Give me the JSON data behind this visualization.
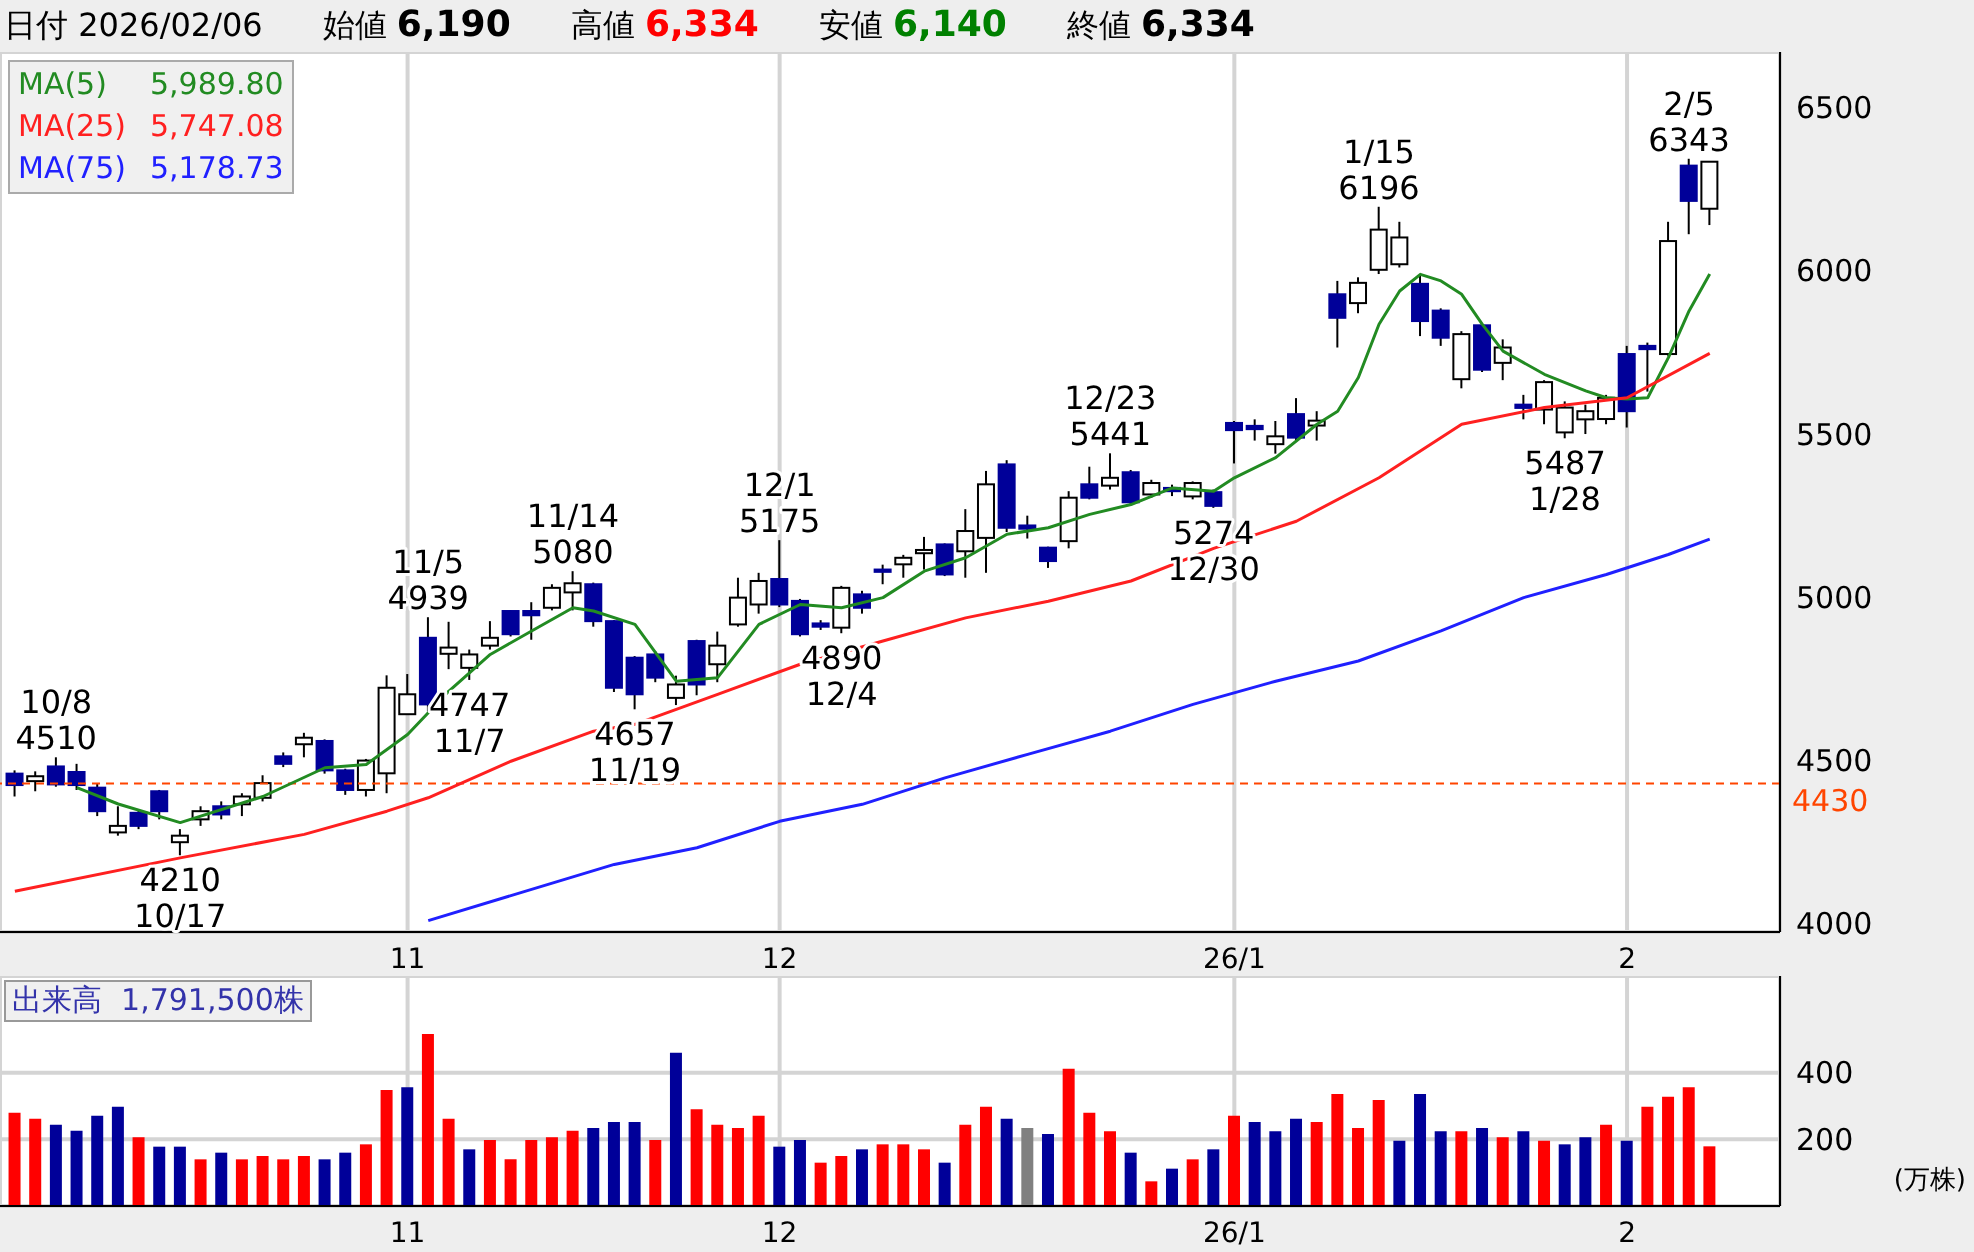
{
  "chart_data": [
    {
      "type": "candlestick",
      "categories": [
        null,
        null,
        null,
        null,
        null,
        null,
        null,
        null,
        null,
        null,
        null,
        null,
        null,
        null,
        null,
        null,
        null,
        null,
        null,
        "11",
        null,
        null,
        null,
        null,
        null,
        null,
        null,
        null,
        null,
        null,
        null,
        null,
        null,
        null,
        null,
        null,
        null,
        "12",
        null,
        null,
        null,
        null,
        null,
        null,
        null,
        null,
        null,
        null,
        null,
        null,
        null,
        null,
        null,
        null,
        null,
        null,
        null,
        null,
        null,
        "26/1",
        null,
        null,
        null,
        null,
        null,
        null,
        null,
        null,
        null,
        null,
        null,
        null,
        null,
        null,
        null,
        null,
        null,
        null,
        "2",
        null,
        null,
        null,
        null
      ],
      "ohlc": [
        [
          4460,
          4470,
          4390,
          4425
        ],
        [
          4437,
          4467,
          4406,
          4452
        ],
        [
          4482,
          4510,
          4420,
          4427
        ],
        [
          4465,
          4490,
          4410,
          4425
        ],
        [
          4417,
          4430,
          4330,
          4345
        ],
        [
          4280,
          4360,
          4270,
          4300
        ],
        [
          4340,
          4350,
          4290,
          4300
        ],
        [
          4406,
          4410,
          4320,
          4345
        ],
        [
          4250,
          4290,
          4210,
          4270
        ],
        [
          4320,
          4360,
          4300,
          4345
        ],
        [
          4360,
          4375,
          4320,
          4335
        ],
        [
          4366,
          4400,
          4330,
          4390
        ],
        [
          4386,
          4455,
          4375,
          4431
        ],
        [
          4513,
          4525,
          4480,
          4490
        ],
        [
          4550,
          4585,
          4510,
          4570
        ],
        [
          4560,
          4565,
          4460,
          4470
        ],
        [
          4470,
          4475,
          4395,
          4410
        ],
        [
          4410,
          4505,
          4390,
          4500
        ],
        [
          4461,
          4761,
          4400,
          4723
        ],
        [
          4642,
          4765,
          4640,
          4703
        ],
        [
          4876,
          4939,
          4650,
          4672
        ],
        [
          4827,
          4925,
          4780,
          4846
        ],
        [
          4784,
          4840,
          4747,
          4825
        ],
        [
          4852,
          4927,
          4840,
          4876
        ],
        [
          4958,
          4960,
          4880,
          4887
        ],
        [
          4958,
          4985,
          4870,
          4945
        ],
        [
          4968,
          5040,
          4960,
          5029
        ],
        [
          5015,
          5080,
          4960,
          5043
        ],
        [
          5040,
          5045,
          4910,
          4927
        ],
        [
          4927,
          4930,
          4710,
          4723
        ],
        [
          4815,
          4820,
          4657,
          4703
        ],
        [
          4825,
          4835,
          4740,
          4754
        ],
        [
          4692,
          4760,
          4670,
          4733
        ],
        [
          4866,
          4870,
          4700,
          4733
        ],
        [
          4795,
          4895,
          4740,
          4852
        ],
        [
          4917,
          5060,
          4910,
          4999
        ],
        [
          4978,
          5075,
          4950,
          5050
        ],
        [
          5056,
          5175,
          4970,
          4978
        ],
        [
          4989,
          4995,
          4880,
          4887
        ],
        [
          4920,
          4930,
          4900,
          4910
        ],
        [
          4907,
          5035,
          4890,
          5029
        ],
        [
          5009,
          5020,
          4950,
          4968
        ],
        [
          5085,
          5100,
          5040,
          5078
        ],
        [
          5101,
          5130,
          5060,
          5121
        ],
        [
          5135,
          5185,
          5085,
          5145
        ],
        [
          5162,
          5165,
          5065,
          5070
        ],
        [
          5141,
          5270,
          5060,
          5203
        ],
        [
          5182,
          5387,
          5075,
          5346
        ],
        [
          5407,
          5420,
          5200,
          5213
        ],
        [
          5220,
          5250,
          5180,
          5210
        ],
        [
          5152,
          5155,
          5090,
          5111
        ],
        [
          5172,
          5325,
          5150,
          5305
        ],
        [
          5346,
          5400,
          5300,
          5305
        ],
        [
          5342,
          5441,
          5330,
          5366
        ],
        [
          5383,
          5390,
          5285,
          5291
        ],
        [
          5315,
          5360,
          5305,
          5350
        ],
        [
          5335,
          5345,
          5310,
          5325
        ],
        [
          5309,
          5355,
          5300,
          5350
        ],
        [
          5322,
          5330,
          5274,
          5280
        ],
        [
          5534,
          5540,
          5410,
          5512
        ],
        [
          5525,
          5545,
          5480,
          5515
        ],
        [
          5469,
          5540,
          5440,
          5493
        ],
        [
          5561,
          5610,
          5480,
          5489
        ],
        [
          5526,
          5570,
          5480,
          5541
        ],
        [
          5928,
          5969,
          5765,
          5856
        ],
        [
          5901,
          5980,
          5870,
          5963
        ],
        [
          6003,
          6196,
          5990,
          6126
        ],
        [
          6020,
          6150,
          6010,
          6102
        ],
        [
          5960,
          5990,
          5800,
          5846
        ],
        [
          5878,
          5885,
          5770,
          5795
        ],
        [
          5668,
          5815,
          5640,
          5806
        ],
        [
          5833,
          5840,
          5690,
          5697
        ],
        [
          5718,
          5790,
          5665,
          5765
        ],
        [
          5590,
          5620,
          5545,
          5580
        ],
        [
          5575,
          5665,
          5530,
          5659
        ],
        [
          5505,
          5600,
          5487,
          5581
        ],
        [
          5545,
          5590,
          5500,
          5570
        ],
        [
          5546,
          5620,
          5530,
          5611
        ],
        [
          5745,
          5770,
          5520,
          5570
        ],
        [
          5770,
          5780,
          5630,
          5760
        ],
        [
          5745,
          6150,
          5740,
          6091
        ],
        [
          6322,
          6343,
          6112,
          6214
        ],
        [
          6190,
          6334,
          6140,
          6334
        ]
      ],
      "colors": [
        "#000099",
        "#ffffff",
        "#000099",
        "#000099",
        "#000099",
        "#ffffff",
        "#000099",
        "#000099",
        "#ffffff",
        "#ffffff",
        "#000099",
        "#ffffff",
        "#ffffff",
        "#000099",
        "#ffffff",
        "#000099",
        "#000099",
        "#ffffff",
        "#ffffff",
        "#ffffff",
        "#000099",
        "#ffffff",
        "#ffffff",
        "#ffffff",
        "#000099",
        "#000099",
        "#ffffff",
        "#ffffff",
        "#000099",
        "#000099",
        "#000099",
        "#000099",
        "#ffffff",
        "#000099",
        "#ffffff",
        "#ffffff",
        "#ffffff",
        "#000099",
        "#000099",
        "#000099",
        "#ffffff",
        "#000099",
        "#000099",
        "#ffffff",
        "#ffffff",
        "#000099",
        "#ffffff",
        "#ffffff",
        "#000099",
        "#000099",
        "#000099",
        "#ffffff",
        "#000099",
        "#ffffff",
        "#000099",
        "#ffffff",
        "#000099",
        "#ffffff",
        "#000099",
        "#000099",
        "#000099",
        "#ffffff",
        "#000099",
        "#ffffff",
        "#000099",
        "#ffffff",
        "#ffffff",
        "#ffffff",
        "#000099",
        "#000099",
        "#ffffff",
        "#000099",
        "#ffffff",
        "#000099",
        "#ffffff",
        "#ffffff",
        "#ffffff",
        "#ffffff",
        "#000099",
        "#000099",
        "#ffffff",
        "#000099",
        "#ffffff"
      ],
      "series": [
        {
          "type": "line",
          "name": "MA(5)",
          "color": "#228b22",
          "values": [
            null,
            null,
            null,
            4417,
            null,
            4367,
            null,
            null,
            4310,
            null,
            null,
            null,
            4390,
            null,
            null,
            4478,
            null,
            4488,
            null,
            4580,
            null,
            4713,
            null,
            4825,
            null,
            4897,
            null,
            4968,
            4958,
            null,
            4917,
            null,
            4743,
            null,
            4754,
            null,
            4917,
            null,
            4978,
            null,
            4968,
            null,
            4999,
            null,
            5080,
            null,
            5121,
            null,
            5193,
            null,
            5213,
            null,
            5254,
            null,
            5284,
            null,
            5335,
            null,
            5325,
            5366,
            null,
            5428,
            null,
            5530,
            5570,
            5673,
            5836,
            5938,
            5989,
            5969,
            5928,
            5836,
            5754,
            null,
            5683,
            null,
            5632,
            5611,
            5607,
            5611,
            5734,
            5877,
            5990
          ]
        },
        {
          "type": "line",
          "name": "MA(25)",
          "color": "#ff2020",
          "values": [
            4100,
            null,
            null,
            null,
            null,
            null,
            null,
            null,
            4202,
            null,
            null,
            null,
            null,
            null,
            4274,
            null,
            null,
            null,
            4345,
            null,
            4386,
            null,
            null,
            null,
            4498,
            null,
            null,
            null,
            4590,
            null,
            4611,
            null,
            null,
            null,
            4703,
            null,
            null,
            null,
            4795,
            null,
            null,
            null,
            4866,
            null,
            null,
            null,
            4937,
            null,
            null,
            null,
            4988,
            null,
            null,
            null,
            5050,
            null,
            null,
            null,
            5150,
            null,
            null,
            null,
            5233,
            null,
            null,
            null,
            5366,
            null,
            null,
            null,
            5530,
            null,
            null,
            null,
            5581,
            null,
            null,
            null,
            5611,
            null,
            null,
            null,
            5747
          ]
        },
        {
          "type": "line",
          "name": "MA(75)",
          "color": "#2020ff",
          "values": [
            null,
            null,
            null,
            null,
            null,
            null,
            null,
            null,
            null,
            null,
            null,
            null,
            null,
            null,
            null,
            null,
            null,
            null,
            null,
            null,
            4010,
            null,
            null,
            null,
            null,
            null,
            null,
            null,
            null,
            4182,
            null,
            null,
            null,
            4233,
            null,
            null,
            null,
            4314,
            null,
            null,
            null,
            4366,
            null,
            null,
            null,
            4447,
            null,
            null,
            null,
            4519,
            null,
            null,
            null,
            4590,
            null,
            null,
            null,
            4672,
            null,
            null,
            null,
            4743,
            null,
            null,
            null,
            4805,
            null,
            null,
            null,
            4897,
            null,
            null,
            null,
            4999,
            null,
            null,
            null,
            5070,
            null,
            null,
            5131,
            null,
            5178
          ]
        }
      ],
      "ylim": [
        3975,
        6670
      ],
      "yticks": [
        4000,
        4500,
        5000,
        5500,
        6000,
        6500
      ],
      "grid": true,
      "legend": "top left",
      "ref_lines": [
        {
          "axis": "y",
          "value": 4430,
          "label": "4430",
          "color": "#ff4500",
          "line_style": "dashed"
        }
      ],
      "annotations": [
        "日付 2026/02/06",
        "始値 6,190",
        "高値 6,334",
        "安値 6,140",
        "終値 6,334",
        "5,989.80",
        "5,747.08",
        "5,178.73",
        {
          "text": "10/8\n4510",
          "y": 4510
        },
        {
          "text": "4210\n10/17",
          "y": 4210
        },
        {
          "text": "11/5\n4939",
          "y": 4939
        },
        {
          "text": "4747\n11/7",
          "y": 4747
        },
        {
          "text": "11/14\n5080",
          "y": 5080
        },
        {
          "text": "4657\n11/19",
          "y": 4657
        },
        {
          "text": "12/1\n5175",
          "y": 5175
        },
        {
          "text": "4890\n12/4",
          "y": 4890
        },
        {
          "text": "12/23\n5441",
          "y": 5441
        },
        {
          "text": "5274\n12/30",
          "y": 5274
        },
        {
          "text": "1/15\n6196",
          "y": 6196
        },
        {
          "text": "5487\n1/28",
          "y": 5487
        },
        {
          "text": "2/5\n6343",
          "y": 6343
        }
      ]
    },
    {
      "type": "bar",
      "title": "出来高  1,791,500株",
      "ylabel": "(万株)",
      "categories": [
        null,
        null,
        null,
        null,
        null,
        null,
        null,
        null,
        null,
        null,
        null,
        null,
        null,
        null,
        null,
        null,
        null,
        null,
        null,
        "11",
        null,
        null,
        null,
        null,
        null,
        null,
        null,
        null,
        null,
        null,
        null,
        null,
        null,
        null,
        null,
        null,
        null,
        "12",
        null,
        null,
        null,
        null,
        null,
        null,
        null,
        null,
        null,
        null,
        null,
        null,
        null,
        null,
        null,
        null,
        null,
        null,
        null,
        null,
        null,
        "26/1",
        null,
        null,
        null,
        null,
        null,
        null,
        null,
        null,
        null,
        null,
        null,
        null,
        null,
        null,
        null,
        null,
        null,
        null,
        "2",
        null,
        null,
        null,
        null
      ],
      "values": [
        280,
        262,
        244,
        226,
        271,
        298,
        206,
        178,
        178,
        140,
        160,
        140,
        150,
        140,
        150,
        140,
        160,
        185,
        348,
        356,
        516,
        262,
        170,
        198,
        140,
        198,
        206,
        226,
        234,
        252,
        252,
        198,
        460,
        290,
        244,
        234,
        271,
        178,
        198,
        130,
        150,
        170,
        185,
        185,
        170,
        130,
        244,
        298,
        262,
        234,
        216,
        412,
        280,
        224,
        160,
        74,
        112,
        140,
        170,
        271,
        252,
        224,
        262,
        252,
        336,
        234,
        318,
        196,
        336,
        224,
        224,
        234,
        206,
        224,
        196,
        185,
        206,
        244,
        196,
        298,
        328,
        356,
        179
      ],
      "colors": [
        "#ff0000",
        "#ff0000",
        "#000099",
        "#000099",
        "#000099",
        "#000099",
        "#ff0000",
        "#000099",
        "#000099",
        "#ff0000",
        "#000099",
        "#ff0000",
        "#ff0000",
        "#ff0000",
        "#ff0000",
        "#000099",
        "#000099",
        "#ff0000",
        "#ff0000",
        "#000099",
        "#ff0000",
        "#ff0000",
        "#000099",
        "#ff0000",
        "#ff0000",
        "#ff0000",
        "#ff0000",
        "#ff0000",
        "#000099",
        "#000099",
        "#000099",
        "#ff0000",
        "#000099",
        "#ff0000",
        "#ff0000",
        "#ff0000",
        "#ff0000",
        "#000099",
        "#000099",
        "#ff0000",
        "#ff0000",
        "#000099",
        "#ff0000",
        "#ff0000",
        "#ff0000",
        "#000099",
        "#ff0000",
        "#ff0000",
        "#000099",
        "#808080",
        "#000099",
        "#ff0000",
        "#ff0000",
        "#ff0000",
        "#000099",
        "#ff0000",
        "#000099",
        "#ff0000",
        "#000099",
        "#ff0000",
        "#000099",
        "#000099",
        "#000099",
        "#ff0000",
        "#ff0000",
        "#ff0000",
        "#ff0000",
        "#000099",
        "#000099",
        "#000099",
        "#ff0000",
        "#000099",
        "#ff0000",
        "#000099",
        "#ff0000",
        "#000099",
        "#000099",
        "#ff0000",
        "#000099",
        "#ff0000",
        "#ff0000",
        "#ff0000",
        "#ff0000"
      ],
      "ylim": [
        0,
        690
      ],
      "yticks": [
        200,
        400
      ],
      "grid": true
    }
  ]
}
